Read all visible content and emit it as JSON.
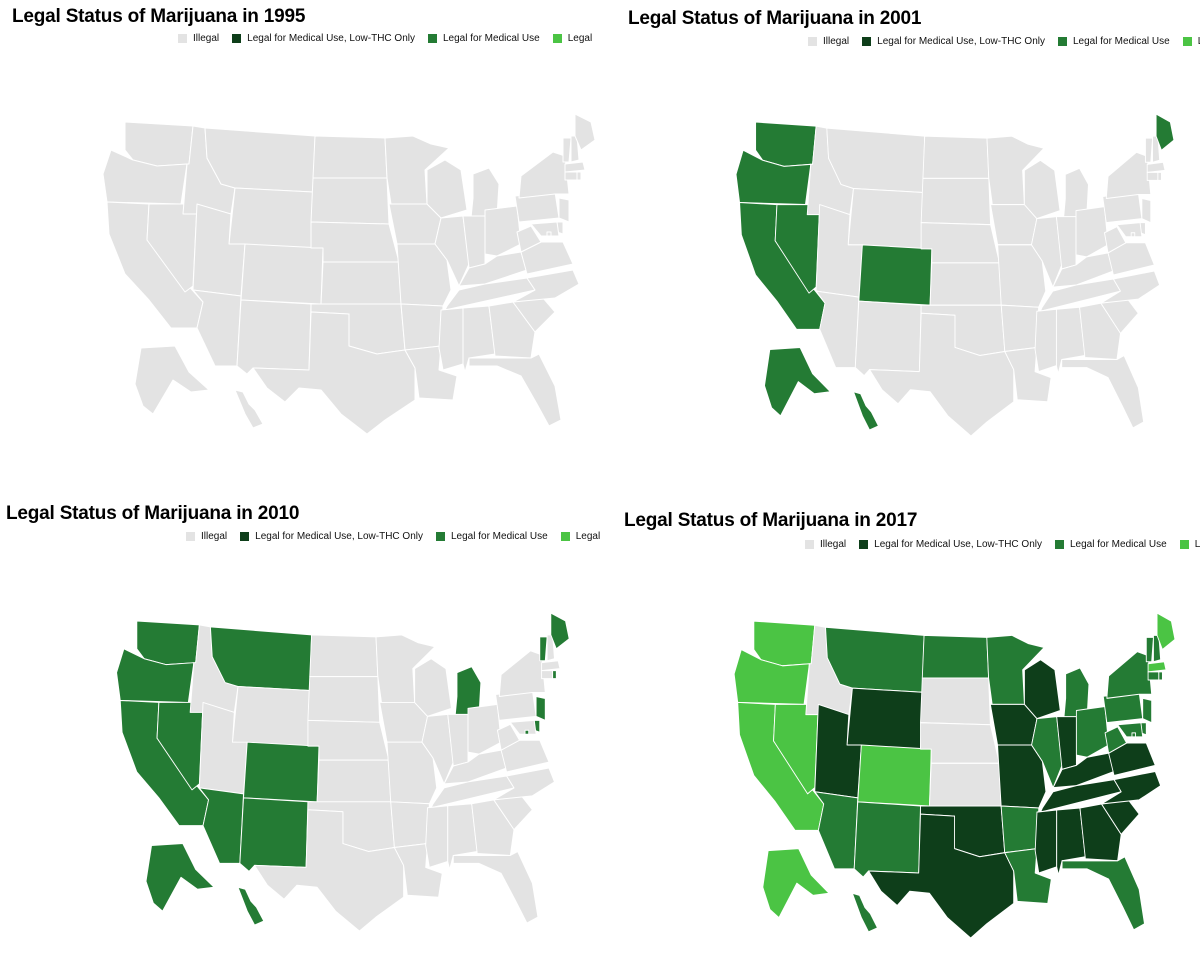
{
  "legend": {
    "illegal": "Illegal",
    "low_thc": "Legal for Medical Use, Low-THC Only",
    "medical": "Legal for Medical Use",
    "legal": "Legal"
  },
  "colors": {
    "illegal": "#e3e3e3",
    "low_thc": "#0e3e1a",
    "medical": "#247b34",
    "legal": "#4bc444"
  },
  "maps": [
    {
      "title": "Legal Status of Marijuana in 1995",
      "year": 1995,
      "status": {}
    },
    {
      "title": "Legal Status of Marijuana in 2001",
      "year": 2001,
      "status": {
        "WA": "medical",
        "OR": "medical",
        "CA": "medical",
        "NV": "medical",
        "CO": "medical",
        "ME": "medical",
        "AK": "medical",
        "HI": "medical"
      }
    },
    {
      "title": "Legal Status of Marijuana in 2010",
      "year": 2010,
      "status": {
        "WA": "medical",
        "OR": "medical",
        "CA": "medical",
        "NV": "medical",
        "MT": "medical",
        "CO": "medical",
        "NM": "medical",
        "AZ": "medical",
        "MI": "medical",
        "VT": "medical",
        "ME": "medical",
        "RI": "medical",
        "NJ": "medical",
        "DE": "medical",
        "DC": "medical",
        "AK": "medical",
        "HI": "medical"
      }
    },
    {
      "title": "Legal Status of Marijuana in 2017",
      "year": 2017,
      "status": {
        "WA": "legal",
        "OR": "legal",
        "CA": "legal",
        "NV": "legal",
        "CO": "legal",
        "AK": "legal",
        "ME": "legal",
        "MA": "legal",
        "MT": "medical",
        "ND": "medical",
        "MN": "medical",
        "AZ": "medical",
        "NM": "medical",
        "AR": "medical",
        "LA": "medical",
        "IL": "medical",
        "MI": "medical",
        "OH": "medical",
        "PA": "medical",
        "WV": "medical",
        "FL": "medical",
        "NY": "medical",
        "VT": "medical",
        "NH": "medical",
        "CT": "medical",
        "RI": "medical",
        "NJ": "medical",
        "DE": "medical",
        "MD": "medical",
        "DC": "medical",
        "HI": "medical",
        "WY": "low_thc",
        "UT": "low_thc",
        "IA": "low_thc",
        "WI": "low_thc",
        "MO": "low_thc",
        "OK": "low_thc",
        "TX": "low_thc",
        "IN": "low_thc",
        "KY": "low_thc",
        "TN": "low_thc",
        "MS": "low_thc",
        "AL": "low_thc",
        "GA": "low_thc",
        "SC": "low_thc",
        "NC": "low_thc",
        "VA": "low_thc"
      }
    }
  ]
}
